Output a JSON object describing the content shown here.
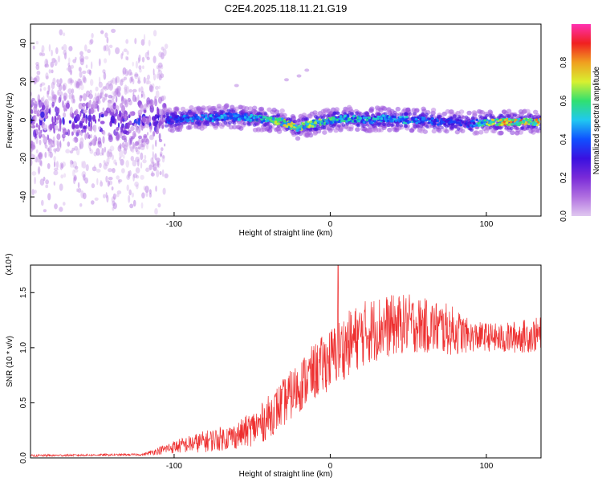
{
  "title": "C2E4.2025.118.11.21.G19",
  "colors": {
    "snr_line": "#ee3030",
    "spectrogram_cmap": [
      "#e0c8f0",
      "#b070e0",
      "#7a2bd8",
      "#3a10e0",
      "#1050ff",
      "#20c8f0",
      "#30e070",
      "#d8f030",
      "#f0a020",
      "#f02020",
      "#ff30b0"
    ]
  },
  "chart_data": [
    {
      "id": "spectrogram",
      "type": "heatmap",
      "title": "",
      "xlabel": "Height of straight line (km)",
      "ylabel": "Frequency (Hz)",
      "xlim": [
        -192,
        135
      ],
      "ylim": [
        -50,
        50
      ],
      "xticks": [
        {
          "v": -100,
          "label": "-100"
        },
        {
          "v": 0,
          "label": "0"
        },
        {
          "v": 100,
          "label": "100"
        }
      ],
      "yticks": [
        {
          "v": 40,
          "label": "40"
        },
        {
          "v": 20,
          "label": "20"
        },
        {
          "v": 0,
          "label": "0"
        },
        {
          "v": -20,
          "label": "-20"
        },
        {
          "v": -40,
          "label": "-40"
        }
      ],
      "colorbar": {
        "label": "Normalized spectral amplitude",
        "range": [
          0,
          1
        ],
        "ticks": [
          {
            "v": 0.0,
            "label": "0.0"
          },
          {
            "v": 0.2,
            "label": "0.2"
          },
          {
            "v": 0.4,
            "label": "0.4"
          },
          {
            "v": 0.6,
            "label": "0.6"
          },
          {
            "v": 0.8,
            "label": "0.8"
          }
        ]
      },
      "ridge": {
        "x": [
          -105,
          -90,
          -75,
          -65,
          -50,
          -40,
          -30,
          -22,
          -12,
          0,
          12,
          25,
          35,
          50,
          60,
          70,
          80,
          88,
          100,
          115,
          135
        ],
        "freq": [
          0,
          1,
          1,
          2,
          1,
          0,
          -1,
          -4,
          -2,
          0,
          1,
          0,
          1,
          0,
          0,
          -1,
          -1,
          -2,
          -1,
          -1,
          -1
        ],
        "peak_amplitude": [
          0.42,
          0.5,
          0.55,
          0.5,
          0.6,
          0.7,
          0.78,
          0.8,
          0.72,
          0.65,
          0.6,
          0.58,
          0.52,
          0.55,
          0.5,
          0.45,
          0.42,
          0.4,
          0.75,
          0.9,
          0.85
        ]
      },
      "noise_region": {
        "x_range": [
          -192,
          -105
        ],
        "amplitude_max": 0.3
      },
      "outliers": [
        {
          "x": -20,
          "freq": 23,
          "amplitude": 0.05
        },
        {
          "x": -28,
          "freq": 21,
          "amplitude": 0.05
        },
        {
          "x": -15,
          "freq": 26,
          "amplitude": 0.05
        },
        {
          "x": -60,
          "freq": 18,
          "amplitude": 0.05
        }
      ]
    },
    {
      "id": "snr",
      "type": "line",
      "title": "",
      "xlabel": "Height of straight line (km)",
      "ylabel": "SNR (10 * v/v)",
      "y_multiplier": "(x10⁴)",
      "xlim": [
        -192,
        135
      ],
      "ylim": [
        0,
        1.75
      ],
      "xticks": [
        {
          "v": -100,
          "label": "-100"
        },
        {
          "v": 0,
          "label": "0"
        },
        {
          "v": 100,
          "label": "100"
        }
      ],
      "yticks": [
        {
          "v": 0.0,
          "label": "0.0"
        },
        {
          "v": 0.5,
          "label": "0.5"
        },
        {
          "v": 1.0,
          "label": "1.0"
        },
        {
          "v": 1.5,
          "label": "1.5"
        }
      ],
      "envelope": {
        "x": [
          -192,
          -120,
          -100,
          -80,
          -60,
          -45,
          -30,
          -15,
          0,
          10,
          20,
          30,
          40,
          50,
          60,
          70,
          80,
          90,
          100,
          110,
          120,
          135
        ],
        "mean": [
          0.02,
          0.03,
          0.1,
          0.15,
          0.2,
          0.3,
          0.5,
          0.72,
          0.9,
          1.02,
          1.12,
          1.18,
          1.2,
          1.22,
          1.2,
          1.18,
          1.15,
          1.1,
          1.1,
          1.08,
          1.1,
          1.12
        ],
        "amp": [
          0.01,
          0.01,
          0.06,
          0.1,
          0.12,
          0.18,
          0.22,
          0.25,
          0.28,
          0.3,
          0.3,
          0.3,
          0.28,
          0.27,
          0.25,
          0.25,
          0.22,
          0.14,
          0.13,
          0.14,
          0.15,
          0.16
        ]
      },
      "spike": {
        "x": 5,
        "y": 1.75
      }
    }
  ]
}
